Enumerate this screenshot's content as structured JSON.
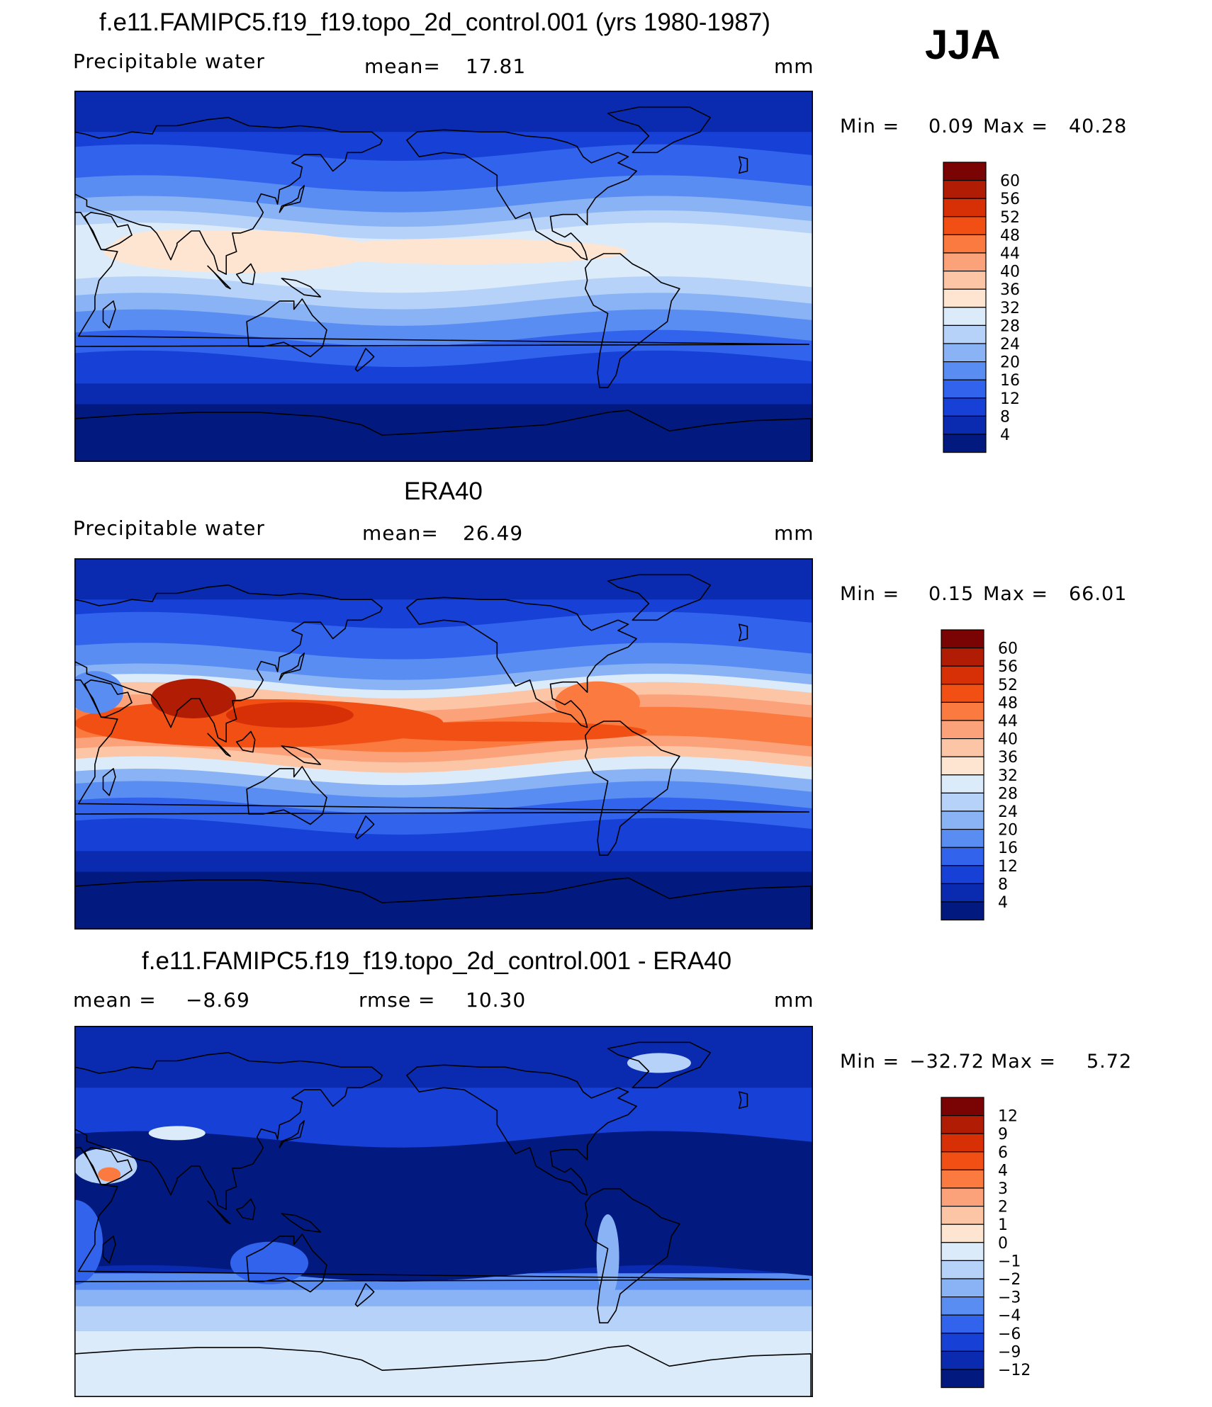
{
  "season": "JJA",
  "panels": [
    {
      "title": "f.e11.FAMIPC5.f19_f19.topo_2d_control.001 (yrs 1980-1987)",
      "variable": "Precipitable water",
      "stat1_label": "mean=",
      "stat1_value": "17.81",
      "stat2_label": "",
      "stat2_value": "",
      "units": "mm",
      "min_label": "Min =",
      "min_value": "0.09",
      "max_label": "Max =",
      "max_value": "40.28",
      "style": "model"
    },
    {
      "title": "ERA40",
      "variable": "Precipitable water",
      "stat1_label": "mean=",
      "stat1_value": "26.49",
      "stat2_label": "",
      "stat2_value": "",
      "units": "mm",
      "min_label": "Min =",
      "min_value": "0.15",
      "max_label": "Max =",
      "max_value": "66.01",
      "style": "obs"
    },
    {
      "title": "f.e11.FAMIPC5.f19_f19.topo_2d_control.001 - ERA40",
      "variable": "",
      "stat1_label": "mean =",
      "stat1_value": "−8.69",
      "stat2_label": "rmse =",
      "stat2_value": "10.30",
      "units": "mm",
      "min_label": "Min =",
      "min_value": "−32.72",
      "max_label": "Max =",
      "max_value": "5.72",
      "style": "diff"
    }
  ],
  "colorbars": [
    {
      "levels": [
        "60",
        "56",
        "52",
        "48",
        "44",
        "40",
        "36",
        "32",
        "28",
        "24",
        "20",
        "16",
        "12",
        "8",
        "4"
      ],
      "colors": [
        "#7a0403",
        "#b01c04",
        "#d83006",
        "#f24f14",
        "#fb7a40",
        "#fca27a",
        "#fcc6a6",
        "#fde5d2",
        "#dcebfa",
        "#b6d2f8",
        "#8ab3f5",
        "#5a8df2",
        "#3263ec",
        "#1740d6",
        "#0a2bb0",
        "#021a7f"
      ]
    },
    {
      "levels": [
        "60",
        "56",
        "52",
        "48",
        "44",
        "40",
        "36",
        "32",
        "28",
        "24",
        "20",
        "16",
        "12",
        "8",
        "4"
      ],
      "colors": [
        "#7a0403",
        "#b01c04",
        "#d83006",
        "#f24f14",
        "#fb7a40",
        "#fca27a",
        "#fcc6a6",
        "#fde5d2",
        "#dcebfa",
        "#b6d2f8",
        "#8ab3f5",
        "#5a8df2",
        "#3263ec",
        "#1740d6",
        "#0a2bb0",
        "#021a7f"
      ]
    },
    {
      "levels": [
        "12",
        "9",
        "6",
        "4",
        "3",
        "2",
        "1",
        "0",
        "−1",
        "−2",
        "−3",
        "−4",
        "−6",
        "−9",
        "−12"
      ],
      "colors": [
        "#7a0403",
        "#b01c04",
        "#d83006",
        "#f24f14",
        "#fb7a40",
        "#fca27a",
        "#fcc6a6",
        "#fde5d2",
        "#dcebfa",
        "#b6d2f8",
        "#8ab3f5",
        "#5a8df2",
        "#3263ec",
        "#1740d6",
        "#0a2bb0",
        "#021a7f"
      ]
    }
  ]
}
